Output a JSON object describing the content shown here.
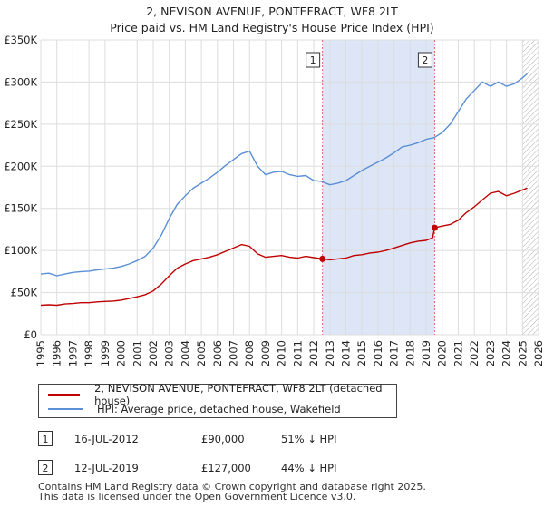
{
  "title_line1": "2, NEVISON AVENUE, PONTEFRACT, WF8 2LT",
  "title_line2": "Price paid vs. HM Land Registry's House Price Index (HPI)",
  "colors": {
    "property": "#c00000",
    "hpi": "#5b8fd6",
    "shade": "#dce6f7",
    "grid": "#dddddd",
    "marker_line": "#e06666"
  },
  "legend": {
    "property_label": "2, NEVISON AVENUE, PONTEFRACT, WF8 2LT (detached house)",
    "hpi_label": "HPI: Average price, detached house, Wakefield"
  },
  "transactions": [
    {
      "id": "1",
      "date": "16-JUL-2012",
      "price": "£90,000",
      "hpi_diff": "51% ↓ HPI"
    },
    {
      "id": "2",
      "date": "12-JUL-2019",
      "price": "£127,000",
      "hpi_diff": "44% ↓ HPI"
    }
  ],
  "footer_line1": "Contains HM Land Registry data © Crown copyright and database right 2025.",
  "footer_line2": "This data is licensed under the Open Government Licence v3.0.",
  "chart_data": {
    "type": "line",
    "title": "Price paid vs. HM Land Registry's House Price Index (HPI)",
    "xlabel": "",
    "ylabel": "",
    "xlim": [
      1995,
      2026
    ],
    "ylim": [
      0,
      350000
    ],
    "x_ticks": [
      1995,
      1996,
      1997,
      1998,
      1999,
      2000,
      2001,
      2002,
      2003,
      2004,
      2005,
      2006,
      2007,
      2008,
      2009,
      2010,
      2011,
      2012,
      2013,
      2014,
      2015,
      2016,
      2017,
      2018,
      2019,
      2020,
      2021,
      2022,
      2023,
      2024,
      2025,
      2026
    ],
    "y_ticks": [
      0,
      50000,
      100000,
      150000,
      200000,
      250000,
      300000,
      350000
    ],
    "y_tick_labels": [
      "£0",
      "£50K",
      "£100K",
      "£150K",
      "£200K",
      "£250K",
      "£300K",
      "£350K"
    ],
    "shaded_span": [
      2012.54,
      2019.53
    ],
    "hatched_from": 2025.0,
    "markers": [
      {
        "label": "1",
        "x": 2012.54,
        "y": 90000
      },
      {
        "label": "2",
        "x": 2019.53,
        "y": 127000
      }
    ],
    "series": [
      {
        "name": "2, NEVISON AVENUE, PONTEFRACT, WF8 2LT (detached house)",
        "x": [
          1995,
          1995.5,
          1996,
          1996.5,
          1997,
          1997.5,
          1998,
          1998.5,
          1999,
          1999.5,
          2000,
          2000.5,
          2001,
          2001.5,
          2002,
          2002.5,
          2003,
          2003.5,
          2004,
          2004.5,
          2005,
          2005.5,
          2006,
          2006.5,
          2007,
          2007.5,
          2008,
          2008.5,
          2009,
          2009.5,
          2010,
          2010.5,
          2011,
          2011.5,
          2012,
          2012.54,
          2013,
          2013.5,
          2014,
          2014.5,
          2015,
          2015.5,
          2016,
          2016.5,
          2017,
          2017.5,
          2018,
          2018.5,
          2019,
          2019.4,
          2019.53,
          2020,
          2020.5,
          2021,
          2021.5,
          2022,
          2022.5,
          2023,
          2023.5,
          2024,
          2024.5,
          2025,
          2025.3
        ],
        "y": [
          35000,
          35500,
          35000,
          36500,
          37000,
          38000,
          38000,
          39000,
          39500,
          40000,
          41000,
          43000,
          45000,
          47500,
          52000,
          60000,
          70000,
          79000,
          84000,
          88000,
          90000,
          92000,
          95000,
          99000,
          103000,
          107000,
          105000,
          96000,
          92000,
          93000,
          94000,
          92000,
          91000,
          93000,
          91500,
          90000,
          89000,
          90000,
          91000,
          94000,
          95000,
          97000,
          98000,
          100000,
          103000,
          106000,
          109000,
          111000,
          112000,
          115000,
          127000,
          129000,
          131000,
          136000,
          145000,
          152000,
          160000,
          168000,
          170000,
          165000,
          168000,
          172000,
          174000
        ]
      },
      {
        "name": "HPI: Average price, detached house, Wakefield",
        "x": [
          1995,
          1995.5,
          1996,
          1996.5,
          1997,
          1997.5,
          1998,
          1998.5,
          1999,
          1999.5,
          2000,
          2000.5,
          2001,
          2001.5,
          2002,
          2002.5,
          2003,
          2003.5,
          2004,
          2004.5,
          2005,
          2005.5,
          2006,
          2006.5,
          2007,
          2007.5,
          2008,
          2008.5,
          2009,
          2009.5,
          2010,
          2010.5,
          2011,
          2011.5,
          2012,
          2012.5,
          2013,
          2013.5,
          2014,
          2014.5,
          2015,
          2015.5,
          2016,
          2016.5,
          2017,
          2017.5,
          2018,
          2018.5,
          2019,
          2019.5,
          2020,
          2020.5,
          2021,
          2021.5,
          2022,
          2022.5,
          2023,
          2023.5,
          2024,
          2024.5,
          2025,
          2025.3
        ],
        "y": [
          72000,
          73000,
          70000,
          72000,
          74000,
          75000,
          75500,
          77000,
          78000,
          79000,
          81000,
          84000,
          88000,
          93000,
          103000,
          118000,
          138000,
          155000,
          165000,
          174000,
          180000,
          186000,
          193000,
          201000,
          208000,
          215000,
          218000,
          200000,
          190000,
          193000,
          194000,
          190000,
          188000,
          189000,
          183000,
          182000,
          178000,
          180000,
          183000,
          189000,
          195000,
          200000,
          205000,
          210000,
          216000,
          223000,
          225000,
          228000,
          232000,
          234000,
          240000,
          250000,
          265000,
          280000,
          290000,
          300000,
          295000,
          300000,
          295000,
          298000,
          305000,
          310000
        ]
      }
    ]
  }
}
